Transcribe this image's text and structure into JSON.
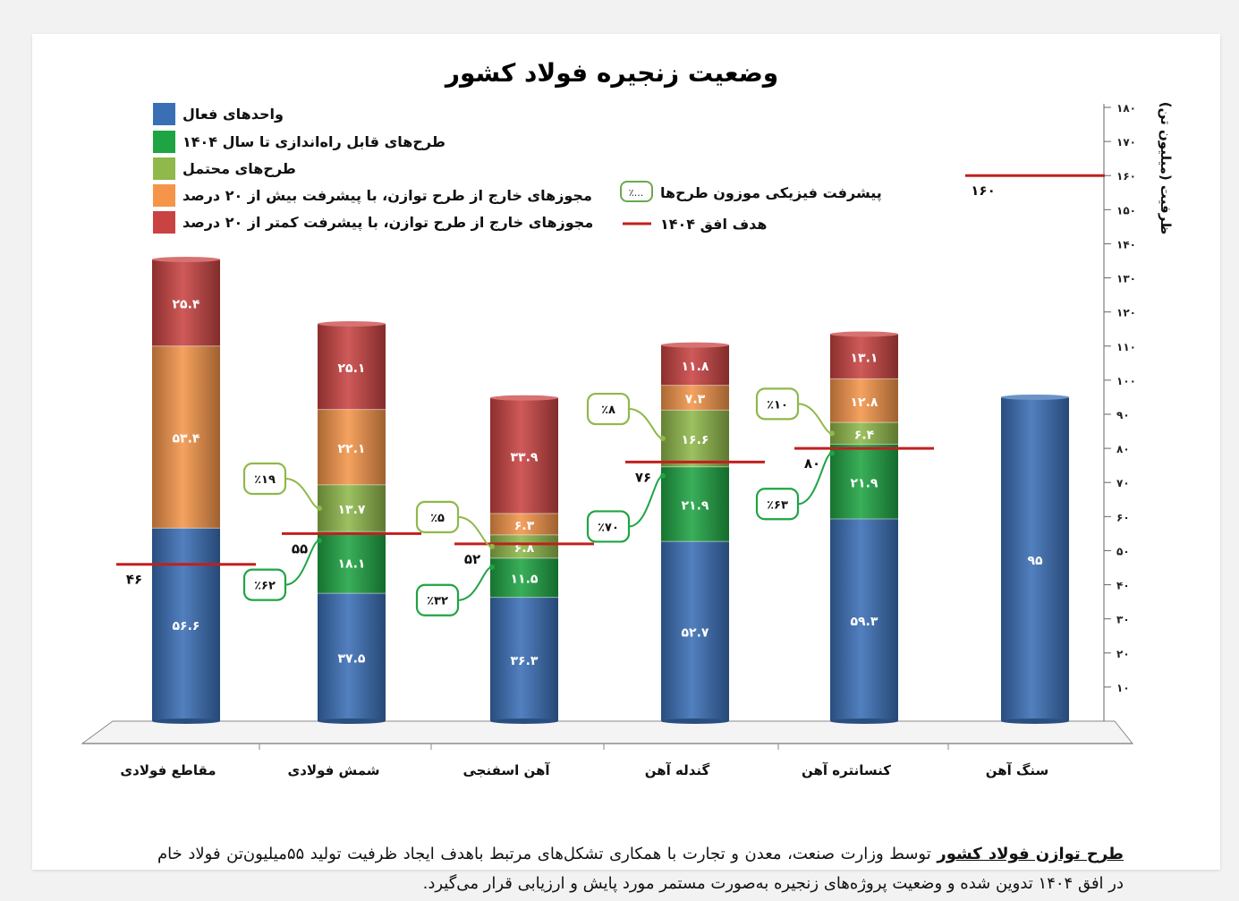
{
  "chart_data": {
    "type": "bar",
    "title": "وضعیت زنجیره فولاد کشور",
    "ylabel": "ظرفیت (میلیون تن)",
    "ylim": [
      0,
      180
    ],
    "yticks": [
      "۱۰",
      "۲۰",
      "۳۰",
      "۴۰",
      "۵۰",
      "۶۰",
      "۷۰",
      "۸۰",
      "۹۰",
      "۱۰۰",
      "۱۱۰",
      "۱۲۰",
      "۱۳۰",
      "۱۴۰",
      "۱۵۰",
      "۱۶۰",
      "۱۷۰",
      "۱۸۰"
    ],
    "categories": [
      "مقاطع فولادی",
      "شمش فولادی",
      "آهن اسفنجی",
      "گندله آهن",
      "کنسانتره آهن",
      "سنگ آهن"
    ],
    "series": [
      {
        "name": "واحدهای فعال",
        "color": "#3a6fb6",
        "values": [
          56.6,
          37.5,
          36.3,
          52.7,
          59.3,
          95
        ],
        "labels": [
          "۵۶.۶",
          "۳۷.۵",
          "۳۶.۳",
          "۵۲.۷",
          "۵۹.۳",
          "۹۵"
        ]
      },
      {
        "name": "طرح‌های قابل راه‌اندازی تا سال ۱۴۰۴",
        "color": "#1fa443",
        "values": [
          0,
          18.1,
          11.5,
          21.9,
          21.9,
          0
        ],
        "labels": [
          "",
          "۱۸.۱",
          "۱۱.۵",
          "۲۱.۹",
          "۲۱.۹",
          ""
        ]
      },
      {
        "name": "طرح‌های محتمل",
        "color": "#90b84b",
        "values": [
          0,
          13.7,
          6.8,
          16.6,
          6.4,
          0
        ],
        "labels": [
          "",
          "۱۳.۷",
          "۶.۸",
          "۱۶.۶",
          "۶.۴",
          ""
        ]
      },
      {
        "name": "مجوزهای خارج از طرح توازن، با پیشرفت بیش از ۲۰ درصد",
        "color": "#f4954a",
        "values": [
          53.4,
          22.1,
          6.3,
          7.3,
          12.8,
          0
        ],
        "labels": [
          "۵۳.۴",
          "۲۲.۱",
          "۶.۳",
          "۷.۳",
          "۱۲.۸",
          ""
        ]
      },
      {
        "name": "مجوزهای خارج از طرح توازن، با پیشرفت کمتر از ۲۰ درصد",
        "color": "#c84342",
        "values": [
          25.4,
          25.1,
          33.9,
          11.8,
          13.1,
          0
        ],
        "labels": [
          "۲۵.۴",
          "۲۵.۱",
          "۳۳.۹",
          "۱۱.۸",
          "۱۳.۱",
          ""
        ]
      }
    ],
    "targets": [
      {
        "value": 46,
        "label": "۴۶"
      },
      {
        "value": 55,
        "label": "۵۵"
      },
      {
        "value": 52,
        "label": "۵۲"
      },
      {
        "value": 76,
        "label": "۷۶"
      },
      {
        "value": 80,
        "label": "۸۰"
      },
      {
        "value": 160,
        "label": "۱۶۰"
      }
    ],
    "progress": [
      {
        "category": 1,
        "series": 1,
        "value": "٪۶۲"
      },
      {
        "category": 1,
        "series": 2,
        "value": "٪۱۹"
      },
      {
        "category": 2,
        "series": 1,
        "value": "٪۳۲"
      },
      {
        "category": 2,
        "series": 2,
        "value": "٪۵"
      },
      {
        "category": 3,
        "series": 1,
        "value": "٪۷۰"
      },
      {
        "category": 3,
        "series": 2,
        "value": "٪۸"
      },
      {
        "category": 4,
        "series": 1,
        "value": "٪۶۳"
      },
      {
        "category": 4,
        "series": 2,
        "value": "٪۱۰"
      }
    ],
    "legend_extra": {
      "progress_label": "پیشرفت فیزیکی موزون طرح‌ها",
      "progress_sample": "٪...",
      "target_label": "هدف افق ۱۴۰۴",
      "target_color": "#c0201e"
    },
    "legend_position": "top-left",
    "grid": false
  },
  "footnote": {
    "lead": "طرح توازن فولاد کشور",
    "text": "توسط وزارت صنعت، معدن و تجارت با همکاری تشکل‌های مرتبط باهدف ایجاد ظرفیت تولید ۵۵میلیون‌تن فولاد خام در افق ۱۴۰۴ تدوین شده و وضعیت پروژه‌های زنجیره به‌صورت مستمر مورد پایش و ارزیابی قرار می‌گیرد."
  }
}
